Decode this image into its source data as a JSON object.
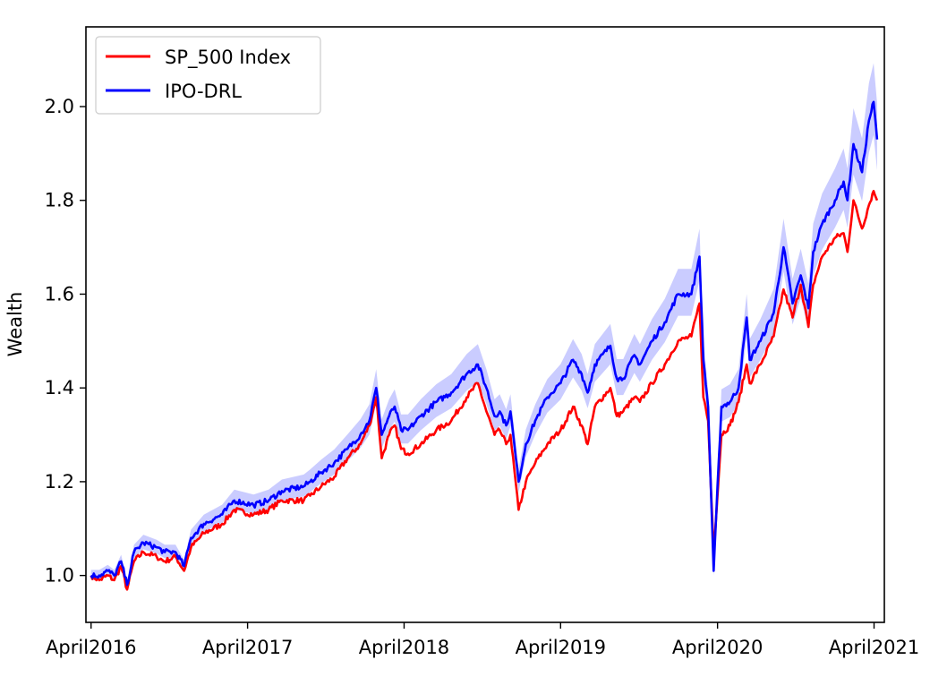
{
  "chart_data": {
    "type": "line",
    "title": "",
    "xlabel": "",
    "ylabel": "Wealth",
    "xlim": [
      "2016-03-20",
      "2021-04-25"
    ],
    "ylim": [
      0.9,
      2.17
    ],
    "x_ticks": [
      {
        "date": "2016-04-01",
        "label": "April2016"
      },
      {
        "date": "2017-04-01",
        "label": "April2017"
      },
      {
        "date": "2018-04-01",
        "label": "April2018"
      },
      {
        "date": "2019-04-01",
        "label": "April2019"
      },
      {
        "date": "2020-04-01",
        "label": "April2020"
      },
      {
        "date": "2021-04-01",
        "label": "April2021"
      }
    ],
    "y_ticks": [
      {
        "value": 1.0,
        "label": "1.0"
      },
      {
        "value": 1.2,
        "label": "1.2"
      },
      {
        "value": 1.4,
        "label": "1.4"
      },
      {
        "value": 1.6,
        "label": "1.6"
      },
      {
        "value": 1.8,
        "label": "1.8"
      },
      {
        "value": 2.0,
        "label": "2.0"
      }
    ],
    "grid": false,
    "legend_position": "top-left",
    "series": [
      {
        "name": "SP_500 Index",
        "color": "#ff0000",
        "points": [
          [
            "2016-04-01",
            1.0
          ],
          [
            "2016-04-20",
            0.99
          ],
          [
            "2016-05-10",
            1.0
          ],
          [
            "2016-05-25",
            0.99
          ],
          [
            "2016-06-10",
            1.02
          ],
          [
            "2016-06-24",
            0.97
          ],
          [
            "2016-07-10",
            1.03
          ],
          [
            "2016-08-01",
            1.05
          ],
          [
            "2016-09-01",
            1.04
          ],
          [
            "2016-09-20",
            1.03
          ],
          [
            "2016-10-15",
            1.04
          ],
          [
            "2016-11-04",
            1.01
          ],
          [
            "2016-11-20",
            1.06
          ],
          [
            "2016-12-20",
            1.09
          ],
          [
            "2017-02-01",
            1.11
          ],
          [
            "2017-03-01",
            1.14
          ],
          [
            "2017-04-15",
            1.13
          ],
          [
            "2017-05-20",
            1.14
          ],
          [
            "2017-06-20",
            1.16
          ],
          [
            "2017-08-10",
            1.16
          ],
          [
            "2017-08-25",
            1.17
          ],
          [
            "2017-09-20",
            1.19
          ],
          [
            "2017-10-20",
            1.21
          ],
          [
            "2017-11-20",
            1.25
          ],
          [
            "2017-12-20",
            1.28
          ],
          [
            "2018-01-10",
            1.32
          ],
          [
            "2018-01-26",
            1.38
          ],
          [
            "2018-02-08",
            1.25
          ],
          [
            "2018-02-25",
            1.3
          ],
          [
            "2018-03-10",
            1.32
          ],
          [
            "2018-03-25",
            1.27
          ],
          [
            "2018-04-10",
            1.26
          ],
          [
            "2018-05-10",
            1.28
          ],
          [
            "2018-06-15",
            1.31
          ],
          [
            "2018-07-20",
            1.33
          ],
          [
            "2018-08-25",
            1.38
          ],
          [
            "2018-09-20",
            1.41
          ],
          [
            "2018-10-10",
            1.35
          ],
          [
            "2018-10-29",
            1.3
          ],
          [
            "2018-11-10",
            1.31
          ],
          [
            "2018-11-25",
            1.28
          ],
          [
            "2018-12-05",
            1.3
          ],
          [
            "2018-12-24",
            1.14
          ],
          [
            "2019-01-10",
            1.2
          ],
          [
            "2019-02-01",
            1.24
          ],
          [
            "2019-03-01",
            1.28
          ],
          [
            "2019-04-01",
            1.31
          ],
          [
            "2019-04-30",
            1.36
          ],
          [
            "2019-05-20",
            1.32
          ],
          [
            "2019-06-03",
            1.28
          ],
          [
            "2019-06-20",
            1.36
          ],
          [
            "2019-07-26",
            1.4
          ],
          [
            "2019-08-10",
            1.34
          ],
          [
            "2019-08-25",
            1.35
          ],
          [
            "2019-09-20",
            1.38
          ],
          [
            "2019-10-03",
            1.37
          ],
          [
            "2019-10-31",
            1.41
          ],
          [
            "2019-11-30",
            1.45
          ],
          [
            "2019-12-31",
            1.5
          ],
          [
            "2020-01-31",
            1.51
          ],
          [
            "2020-02-19",
            1.58
          ],
          [
            "2020-02-28",
            1.38
          ],
          [
            "2020-03-10",
            1.33
          ],
          [
            "2020-03-23",
            1.05
          ],
          [
            "2020-04-10",
            1.3
          ],
          [
            "2020-04-30",
            1.32
          ],
          [
            "2020-05-20",
            1.37
          ],
          [
            "2020-06-08",
            1.45
          ],
          [
            "2020-06-15",
            1.41
          ],
          [
            "2020-07-10",
            1.45
          ],
          [
            "2020-08-10",
            1.51
          ],
          [
            "2020-09-02",
            1.61
          ],
          [
            "2020-09-23",
            1.55
          ],
          [
            "2020-10-12",
            1.62
          ],
          [
            "2020-10-30",
            1.53
          ],
          [
            "2020-11-10",
            1.62
          ],
          [
            "2020-12-01",
            1.68
          ],
          [
            "2020-12-31",
            1.72
          ],
          [
            "2021-01-20",
            1.73
          ],
          [
            "2021-01-29",
            1.69
          ],
          [
            "2021-02-12",
            1.8
          ],
          [
            "2021-03-04",
            1.74
          ],
          [
            "2021-03-20",
            1.79
          ],
          [
            "2021-03-31",
            1.82
          ],
          [
            "2021-04-08",
            1.8
          ]
        ]
      },
      {
        "name": "IPO-DRL",
        "color": "#0000ff",
        "band_color": "#9fa3ff",
        "points": [
          [
            "2016-04-01",
            1.0
          ],
          [
            "2016-04-20",
            1.0
          ],
          [
            "2016-05-10",
            1.01
          ],
          [
            "2016-05-25",
            1.0
          ],
          [
            "2016-06-10",
            1.03
          ],
          [
            "2016-06-24",
            0.98
          ],
          [
            "2016-07-10",
            1.05
          ],
          [
            "2016-08-01",
            1.07
          ],
          [
            "2016-09-01",
            1.06
          ],
          [
            "2016-09-20",
            1.05
          ],
          [
            "2016-10-15",
            1.05
          ],
          [
            "2016-11-04",
            1.02
          ],
          [
            "2016-11-20",
            1.08
          ],
          [
            "2016-12-20",
            1.11
          ],
          [
            "2017-02-01",
            1.13
          ],
          [
            "2017-03-01",
            1.16
          ],
          [
            "2017-04-15",
            1.15
          ],
          [
            "2017-05-20",
            1.16
          ],
          [
            "2017-06-20",
            1.18
          ],
          [
            "2017-08-10",
            1.19
          ],
          [
            "2017-08-25",
            1.2
          ],
          [
            "2017-09-20",
            1.22
          ],
          [
            "2017-10-20",
            1.24
          ],
          [
            "2017-11-20",
            1.27
          ],
          [
            "2017-12-20",
            1.3
          ],
          [
            "2018-01-10",
            1.33
          ],
          [
            "2018-01-26",
            1.4
          ],
          [
            "2018-02-08",
            1.3
          ],
          [
            "2018-02-25",
            1.34
          ],
          [
            "2018-03-10",
            1.36
          ],
          [
            "2018-03-25",
            1.31
          ],
          [
            "2018-04-10",
            1.31
          ],
          [
            "2018-05-10",
            1.34
          ],
          [
            "2018-06-15",
            1.37
          ],
          [
            "2018-07-20",
            1.39
          ],
          [
            "2018-08-25",
            1.43
          ],
          [
            "2018-09-20",
            1.45
          ],
          [
            "2018-10-10",
            1.4
          ],
          [
            "2018-10-29",
            1.34
          ],
          [
            "2018-11-10",
            1.35
          ],
          [
            "2018-11-25",
            1.32
          ],
          [
            "2018-12-05",
            1.35
          ],
          [
            "2018-12-24",
            1.2
          ],
          [
            "2019-01-10",
            1.28
          ],
          [
            "2019-02-01",
            1.33
          ],
          [
            "2019-03-01",
            1.38
          ],
          [
            "2019-04-01",
            1.41
          ],
          [
            "2019-04-30",
            1.46
          ],
          [
            "2019-05-20",
            1.43
          ],
          [
            "2019-06-03",
            1.39
          ],
          [
            "2019-06-20",
            1.45
          ],
          [
            "2019-07-26",
            1.49
          ],
          [
            "2019-08-10",
            1.42
          ],
          [
            "2019-08-25",
            1.42
          ],
          [
            "2019-09-20",
            1.47
          ],
          [
            "2019-10-03",
            1.45
          ],
          [
            "2019-10-31",
            1.5
          ],
          [
            "2019-11-30",
            1.54
          ],
          [
            "2019-12-31",
            1.6
          ],
          [
            "2020-01-31",
            1.6
          ],
          [
            "2020-02-19",
            1.68
          ],
          [
            "2020-02-28",
            1.46
          ],
          [
            "2020-03-10",
            1.36
          ],
          [
            "2020-03-23",
            1.01
          ],
          [
            "2020-04-10",
            1.36
          ],
          [
            "2020-04-30",
            1.37
          ],
          [
            "2020-05-20",
            1.4
          ],
          [
            "2020-06-08",
            1.55
          ],
          [
            "2020-06-15",
            1.46
          ],
          [
            "2020-07-10",
            1.5
          ],
          [
            "2020-08-10",
            1.56
          ],
          [
            "2020-09-02",
            1.7
          ],
          [
            "2020-09-23",
            1.58
          ],
          [
            "2020-10-12",
            1.64
          ],
          [
            "2020-10-30",
            1.57
          ],
          [
            "2020-11-10",
            1.69
          ],
          [
            "2020-12-01",
            1.75
          ],
          [
            "2020-12-31",
            1.8
          ],
          [
            "2021-01-20",
            1.84
          ],
          [
            "2021-01-29",
            1.8
          ],
          [
            "2021-02-12",
            1.92
          ],
          [
            "2021-03-04",
            1.86
          ],
          [
            "2021-03-20",
            1.97
          ],
          [
            "2021-03-31",
            2.01
          ],
          [
            "2021-04-08",
            1.93
          ]
        ]
      }
    ]
  }
}
